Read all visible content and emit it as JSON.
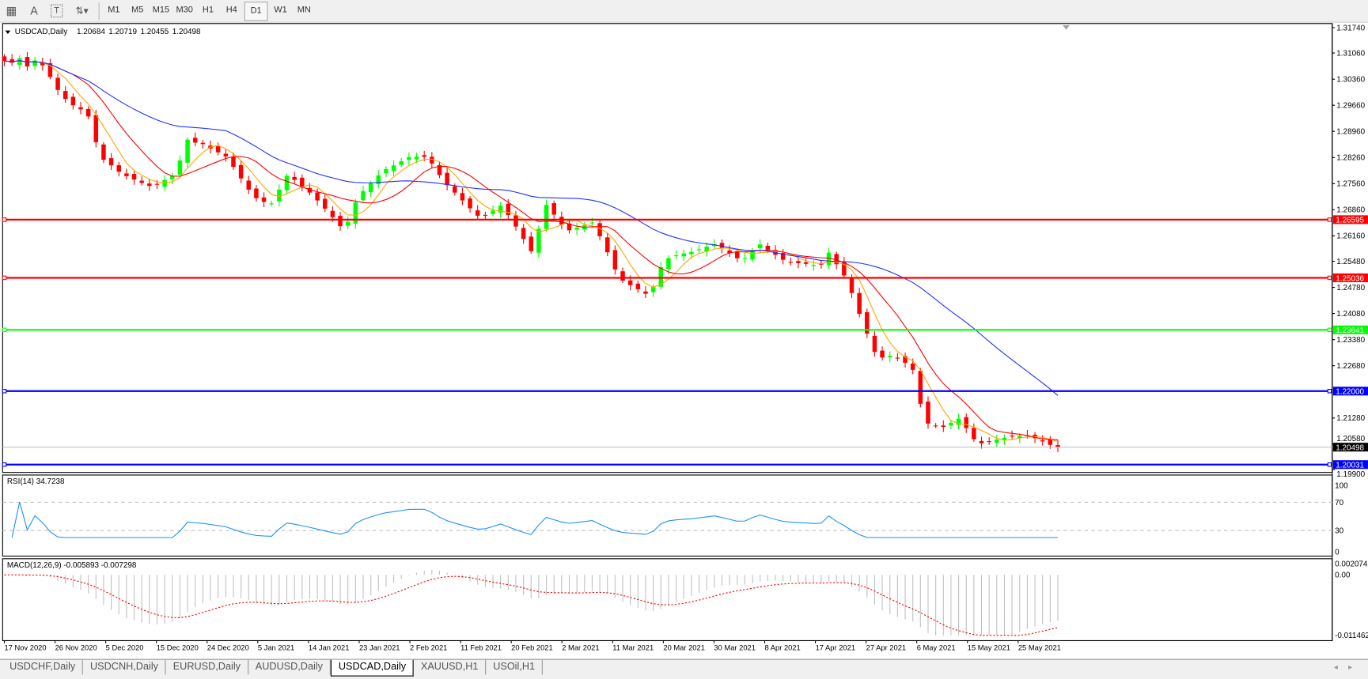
{
  "toolbar": {
    "tools": [
      {
        "name": "grid-lines-icon",
        "glyph": "▦"
      },
      {
        "name": "text-icon",
        "glyph": "A"
      },
      {
        "name": "text-label-icon",
        "glyph": "T"
      },
      {
        "name": "arrows-icon",
        "glyph": "⇅▾"
      }
    ],
    "timeframes": [
      "M1",
      "M5",
      "M15",
      "M30",
      "H1",
      "H4",
      "D1",
      "W1",
      "MN"
    ],
    "active_timeframe": "D1"
  },
  "header": {
    "symbol": "USDCAD,Daily",
    "open": "1.20684",
    "high": "1.20719",
    "low": "1.20455",
    "close": "1.20498"
  },
  "colors": {
    "bull": "#00ff00",
    "bear": "#ff0000",
    "ma_fast": "#ffa500",
    "ma_mid": "#ff0000",
    "ma_slow": "#2030ff",
    "rsi": "#1e90ff",
    "macd_hist": "#c0c0c0",
    "macd_signal": "#ff0000"
  },
  "chart_data": {
    "type": "candlestick",
    "symbol": "USDCAD",
    "timeframe": "Daily",
    "ylim": [
      1.199,
      1.3174
    ],
    "price_ticks": [
      "1.31740",
      "1.31060",
      "1.30360",
      "1.29660",
      "1.28960",
      "1.28260",
      "1.27560",
      "1.26860",
      "1.26160",
      "1.25480",
      "1.24780",
      "1.24080",
      "1.23380",
      "1.22680",
      "1.21280",
      "1.20580",
      "1.19900"
    ],
    "x_labels": [
      "17 Nov 2020",
      "26 Nov 2020",
      "5 Dec 2020",
      "15 Dec 2020",
      "24 Dec 2020",
      "5 Jan 2021",
      "14 Jan 2021",
      "23 Jan 2021",
      "2 Feb 2021",
      "11 Feb 2021",
      "20 Feb 2021",
      "2 Mar 2021",
      "11 Mar 2021",
      "20 Mar 2021",
      "30 Mar 2021",
      "8 Apr 2021",
      "17 Apr 2021",
      "27 Apr 2021",
      "6 May 2021",
      "15 May 2021",
      "25 May 2021"
    ],
    "closes": [
      1.3085,
      1.308,
      1.3092,
      1.307,
      1.3086,
      1.3073,
      1.3042,
      1.3007,
      1.2983,
      1.2966,
      1.2955,
      1.2936,
      1.2867,
      1.282,
      1.2805,
      1.2788,
      1.2776,
      1.2767,
      1.2758,
      1.275,
      1.2753,
      1.2766,
      1.2777,
      1.2818,
      1.2874,
      1.2866,
      1.2862,
      1.285,
      1.284,
      1.2829,
      1.2801,
      1.277,
      1.274,
      1.2717,
      1.2707,
      1.2703,
      1.274,
      1.2777,
      1.2766,
      1.2749,
      1.2732,
      1.2711,
      1.2689,
      1.2666,
      1.2642,
      1.2654,
      1.2706,
      1.2736,
      1.2757,
      1.2778,
      1.2795,
      1.2805,
      1.2816,
      1.2827,
      1.2828,
      1.2828,
      1.281,
      1.2779,
      1.2752,
      1.2732,
      1.2711,
      1.269,
      1.267,
      1.2672,
      1.2684,
      1.2697,
      1.2672,
      1.2641,
      1.2608,
      1.2575,
      1.2635,
      1.2699,
      1.2673,
      1.2646,
      1.2631,
      1.2638,
      1.2645,
      1.2652,
      1.2615,
      1.2572,
      1.2526,
      1.2496,
      1.2484,
      1.2473,
      1.2461,
      1.2479,
      1.2532,
      1.2556,
      1.2564,
      1.2569,
      1.2573,
      1.258,
      1.2587,
      1.2594,
      1.2583,
      1.257,
      1.2556,
      1.2557,
      1.2577,
      1.2593,
      1.2579,
      1.2565,
      1.2552,
      1.2546,
      1.2543,
      1.2541,
      1.2538,
      1.2539,
      1.2571,
      1.254,
      1.251,
      1.2463,
      1.2407,
      1.2354,
      1.2305,
      1.229,
      1.2295,
      1.2288,
      1.2276,
      1.2257,
      1.2166,
      1.2113,
      1.2107,
      1.2104,
      1.2115,
      1.2126,
      1.2101,
      1.2071,
      1.206,
      1.2065,
      1.207,
      1.2075,
      1.208,
      1.208,
      1.208,
      1.2074,
      1.2065,
      1.2056,
      1.20498
    ],
    "horizontal_lines": [
      {
        "price": 1.26595,
        "label": "1.26595",
        "color": "#ff0000"
      },
      {
        "price": 1.25036,
        "label": "1.25036",
        "color": "#ff0000"
      },
      {
        "price": 1.23641,
        "label": "1.23641",
        "color": "#00ff00"
      },
      {
        "price": 1.22,
        "label": "1.22000",
        "color": "#0000ff"
      },
      {
        "price": 1.20031,
        "label": "1.20031",
        "color": "#0000ff"
      }
    ],
    "current_price": {
      "price": 1.20498,
      "label": "1.20498"
    },
    "rsi": {
      "label": "RSI(14) 34.7238",
      "levels": [
        "100",
        "70",
        "30",
        "0"
      ],
      "ylim": [
        0,
        100
      ]
    },
    "macd": {
      "label": "MACD(12,26,9) -0.005893 -0.007298",
      "ticks": [
        "0.002074",
        "0.00",
        "-0.011462"
      ],
      "ylim": [
        -0.011462,
        0.002074
      ]
    }
  },
  "tabs": [
    {
      "label": "USDCHF,Daily",
      "active": false
    },
    {
      "label": "USDCNH,Daily",
      "active": false
    },
    {
      "label": "EURUSD,Daily",
      "active": false
    },
    {
      "label": "AUDUSD,Daily",
      "active": false
    },
    {
      "label": "USDCAD,Daily",
      "active": true
    },
    {
      "label": "XAUUSD,H1",
      "active": false
    },
    {
      "label": "USOil,H1",
      "active": false
    }
  ],
  "scroll": {
    "left": "◂",
    "right": "▸"
  }
}
